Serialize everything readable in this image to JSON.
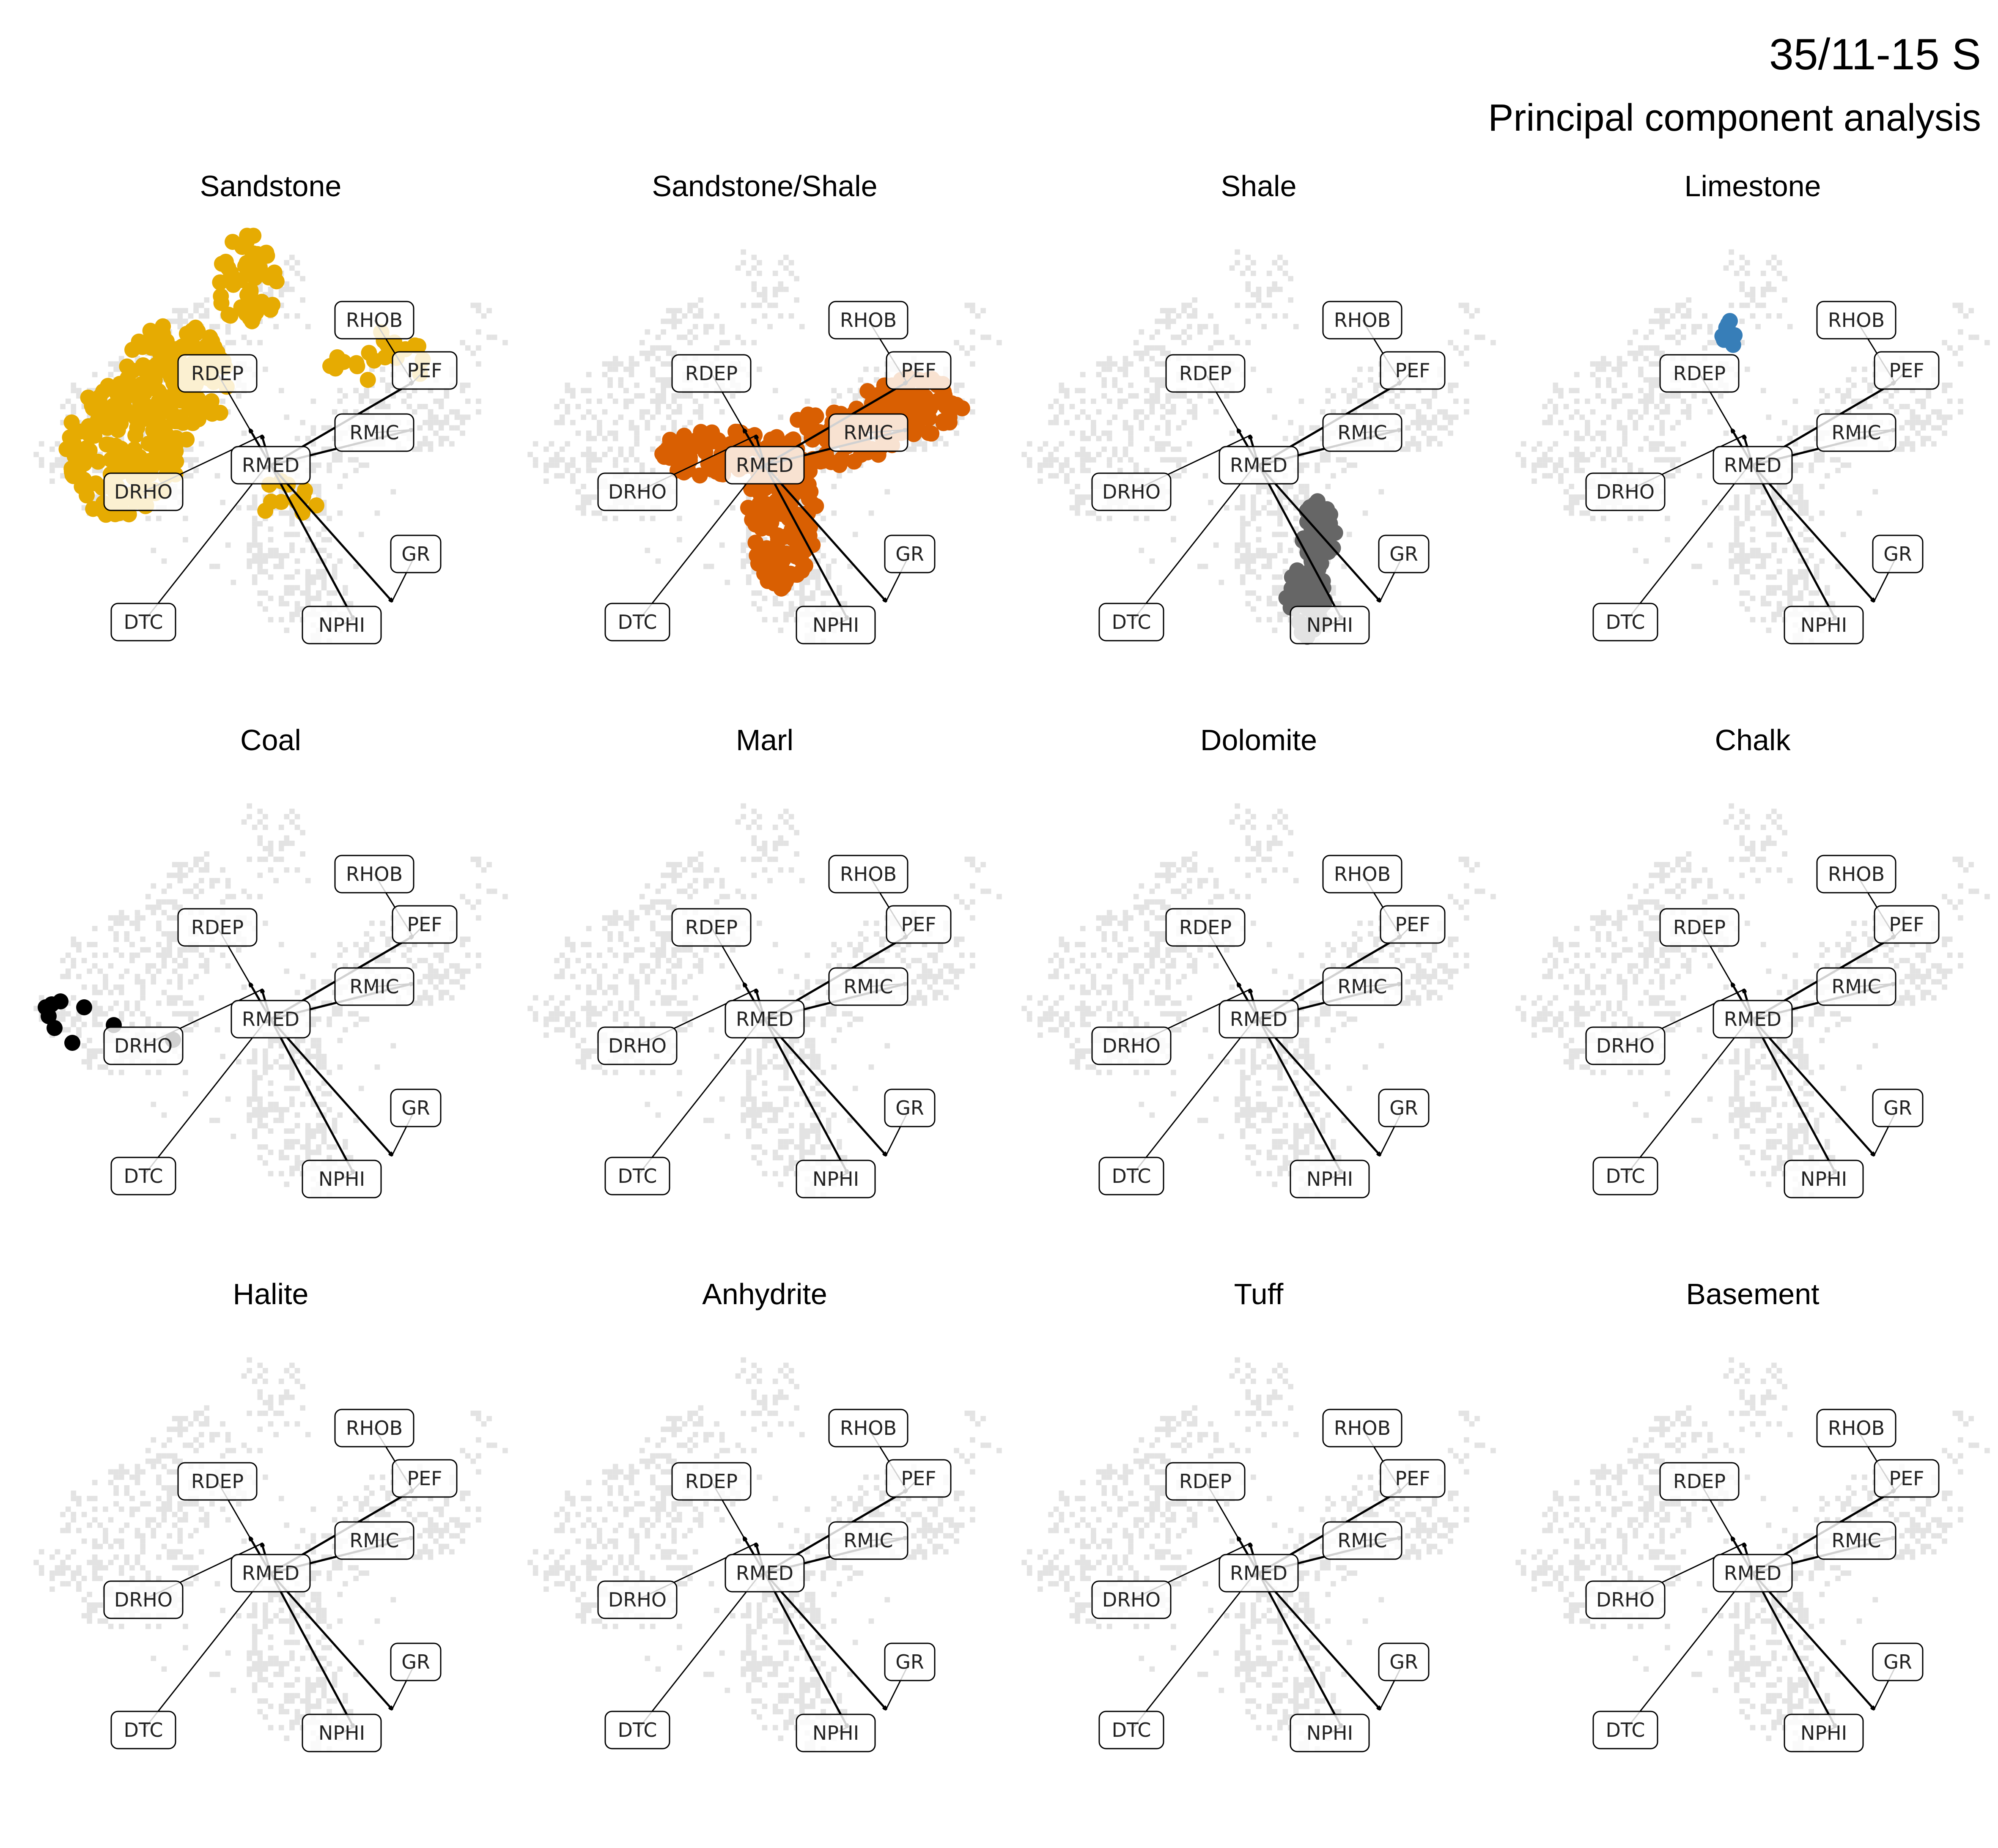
{
  "title": "35/11-15 S",
  "subtitle": "Principal component analysis",
  "chart_data": {
    "type": "scatter",
    "description_of_axes": "PCA biplot; axes not drawn",
    "xlim": [
      -4,
      4
    ],
    "ylim": [
      -4,
      4
    ],
    "loadings": [
      {
        "name": "RHOB",
        "arrow": [
          2.4,
          1.4
        ],
        "label": [
          1.75,
          2.45
        ]
      },
      {
        "name": "PEF",
        "arrow": [
          2.4,
          1.4
        ],
        "label": [
          2.6,
          1.6
        ]
      },
      {
        "name": "RMIC",
        "arrow": [
          2.4,
          0.6
        ],
        "label": [
          1.75,
          0.55
        ]
      },
      {
        "name": "RDEP",
        "arrow": [
          -0.35,
          0.6
        ],
        "label": [
          -0.9,
          1.55
        ]
      },
      {
        "name": "DRHO",
        "arrow": [
          -0.15,
          0.5
        ],
        "label": [
          -2.15,
          -0.45
        ]
      },
      {
        "name": "DTC",
        "arrow": [
          -0.1,
          -0.05
        ],
        "label": [
          -2.15,
          -2.65
        ]
      },
      {
        "name": "NPHI",
        "arrow": [
          1.4,
          -2.6
        ],
        "label": [
          1.2,
          -2.7
        ]
      },
      {
        "name": "GR",
        "arrow": [
          2.05,
          -2.3
        ],
        "label": [
          2.45,
          -1.5
        ]
      },
      {
        "name": "RMED",
        "arrow": [
          0,
          0
        ],
        "label": [
          0,
          0
        ]
      }
    ],
    "panels": [
      {
        "name": "Sandstone",
        "color": "#E6AB02"
      },
      {
        "name": "Sandstone/Shale",
        "color": "#D95F02"
      },
      {
        "name": "Shale",
        "color": "#666666"
      },
      {
        "name": "Limestone",
        "color": "#377EB8"
      },
      {
        "name": "Coal",
        "color": "#000000"
      },
      {
        "name": "Marl",
        "color": "#999999"
      },
      {
        "name": "Dolomite",
        "color": "#999999"
      },
      {
        "name": "Chalk",
        "color": "#999999"
      },
      {
        "name": "Halite",
        "color": "#999999"
      },
      {
        "name": "Anhydrite",
        "color": "#999999"
      },
      {
        "name": "Tuff",
        "color": "#999999"
      },
      {
        "name": "Basement",
        "color": "#999999"
      }
    ],
    "clusters": {
      "Sandstone": [
        {
          "cx": -2.5,
          "cy": 0.3,
          "rx": 1.0,
          "ry": 1.2,
          "n": 160
        },
        {
          "cx": -1.6,
          "cy": 1.4,
          "rx": 0.9,
          "ry": 1.0,
          "n": 110
        },
        {
          "cx": -0.4,
          "cy": 3.1,
          "rx": 0.5,
          "ry": 0.8,
          "n": 50
        },
        {
          "cx": 1.8,
          "cy": 1.8,
          "rx": 0.9,
          "ry": 0.5,
          "n": 25
        },
        {
          "cx": 0.3,
          "cy": -0.6,
          "rx": 0.5,
          "ry": 0.4,
          "n": 12
        }
      ],
      "Sandstone/Shale": [
        {
          "cx": 0.3,
          "cy": -0.8,
          "rx": 0.6,
          "ry": 1.3,
          "n": 160
        },
        {
          "cx": -0.8,
          "cy": 0.2,
          "rx": 1.0,
          "ry": 0.4,
          "n": 80
        },
        {
          "cx": 2.5,
          "cy": 1.0,
          "rx": 0.9,
          "ry": 0.5,
          "n": 90
        },
        {
          "cx": 1.3,
          "cy": 0.5,
          "rx": 0.9,
          "ry": 0.5,
          "n": 60
        }
      ],
      "Shale": [
        {
          "cx": 1.0,
          "cy": -1.2,
          "rx": 0.3,
          "ry": 0.6,
          "n": 45
        },
        {
          "cx": 0.8,
          "cy": -2.3,
          "rx": 0.35,
          "ry": 0.6,
          "n": 45
        }
      ],
      "Limestone": [
        {
          "cx": -0.4,
          "cy": 2.15,
          "rx": 0.12,
          "ry": 0.3,
          "n": 9
        }
      ]
    },
    "coal_points": [
      [
        -3.8,
        0.2
      ],
      [
        -3.7,
        0.25
      ],
      [
        -3.55,
        0.3
      ],
      [
        -3.75,
        0.05
      ],
      [
        -3.65,
        -0.15
      ],
      [
        -3.35,
        -0.4
      ],
      [
        -3.15,
        0.2
      ],
      [
        -2.65,
        -0.1
      ],
      [
        -1.65,
        -0.35
      ]
    ]
  }
}
